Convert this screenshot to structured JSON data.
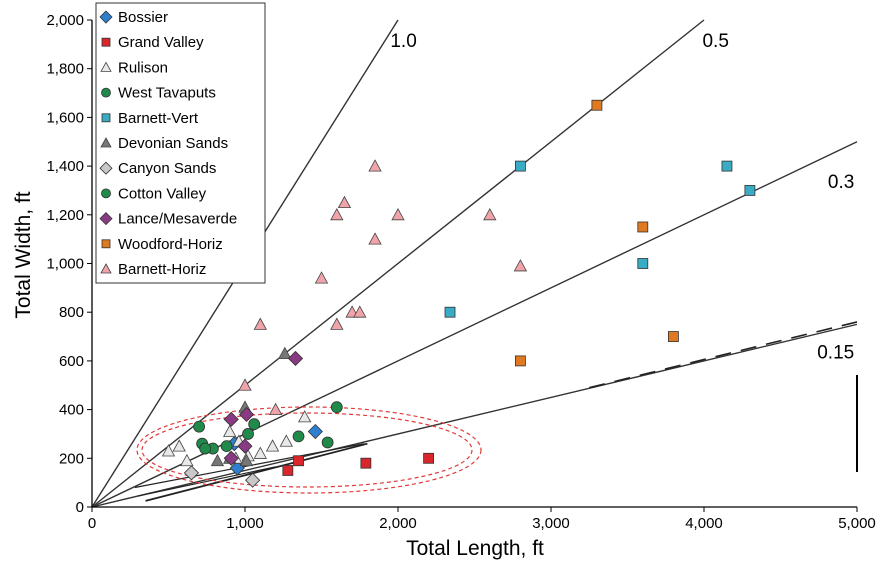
{
  "chart_data": {
    "type": "scatter",
    "xlabel": "Total Length, ft",
    "ylabel": "Total Width, ft",
    "xlim": [
      0,
      5000
    ],
    "ylim": [
      0,
      2000
    ],
    "x_ticks": [
      {
        "value": 0,
        "label": "0"
      },
      {
        "value": 1000,
        "label": "1,000"
      },
      {
        "value": 2000,
        "label": "2,000"
      },
      {
        "value": 3000,
        "label": "3,000"
      },
      {
        "value": 4000,
        "label": "4,000"
      },
      {
        "value": 5000,
        "label": "5,000"
      }
    ],
    "y_ticks": [
      {
        "value": 0,
        "label": "0"
      },
      {
        "value": 200,
        "label": "200"
      },
      {
        "value": 400,
        "label": "400"
      },
      {
        "value": 600,
        "label": "600"
      },
      {
        "value": 800,
        "label": "800"
      },
      {
        "value": 1000,
        "label": "1,000"
      },
      {
        "value": 1200,
        "label": "1,200"
      },
      {
        "value": 1400,
        "label": "1,400"
      },
      {
        "value": 1600,
        "label": "1,600"
      },
      {
        "value": 1800,
        "label": "1,800"
      },
      {
        "value": 2000,
        "label": "2,000"
      }
    ],
    "grid": false,
    "legend_position": "top-left",
    "ratio_lines": [
      {
        "label": "1.0",
        "slope": 1.0,
        "label_at": [
          1950,
          1890
        ]
      },
      {
        "label": "0.5",
        "slope": 0.5,
        "label_at": [
          3990,
          1890
        ]
      },
      {
        "label": "0.3",
        "slope": 0.3,
        "label_at": [
          4810,
          1310
        ]
      },
      {
        "label": "0.15",
        "slope": 0.15,
        "label_at": [
          4740,
          610
        ]
      }
    ],
    "series": [
      {
        "name": "Bossier",
        "marker": "diamond",
        "color": "#2f7fd0",
        "points": [
          [
            950,
            160
          ],
          [
            930,
            260
          ],
          [
            1460,
            310
          ]
        ]
      },
      {
        "name": "Grand Valley",
        "marker": "square",
        "color": "#d8262b",
        "points": [
          [
            1280,
            150
          ],
          [
            1350,
            190
          ],
          [
            1790,
            180
          ],
          [
            2200,
            200
          ]
        ]
      },
      {
        "name": "Rulison",
        "marker": "triangle",
        "color": "#e8e8e8",
        "points": [
          [
            500,
            230
          ],
          [
            570,
            250
          ],
          [
            620,
            190
          ],
          [
            900,
            310
          ],
          [
            960,
            270
          ],
          [
            1020,
            210
          ],
          [
            1100,
            220
          ],
          [
            1180,
            250
          ],
          [
            1270,
            270
          ],
          [
            1390,
            370
          ],
          [
            940,
            200
          ]
        ]
      },
      {
        "name": "West Tavaputs",
        "marker": "circle",
        "color": "#1f8a4a",
        "points": [
          [
            700,
            330
          ],
          [
            720,
            260
          ],
          [
            790,
            240
          ],
          [
            880,
            250
          ],
          [
            1060,
            340
          ],
          [
            1350,
            290
          ],
          [
            1540,
            265
          ],
          [
            1600,
            410
          ]
        ]
      },
      {
        "name": "Barnett-Vert",
        "marker": "square",
        "color": "#3aabc4",
        "points": [
          [
            2340,
            800
          ],
          [
            2800,
            1400
          ],
          [
            3600,
            1000
          ],
          [
            4150,
            1400
          ],
          [
            4300,
            1300
          ]
        ]
      },
      {
        "name": "Devonian Sands",
        "marker": "triangle",
        "color": "#777777",
        "points": [
          [
            820,
            190
          ],
          [
            900,
            200
          ],
          [
            1000,
            410
          ],
          [
            1010,
            190
          ],
          [
            1260,
            630
          ]
        ]
      },
      {
        "name": "Canyon Sands",
        "marker": "diamond",
        "color": "#c8c8c8",
        "points": [
          [
            650,
            140
          ],
          [
            1050,
            110
          ]
        ]
      },
      {
        "name": "Cotton Valley",
        "marker": "circle",
        "color": "#1f8a4a",
        "points": [
          [
            740,
            240
          ],
          [
            1020,
            300
          ]
        ]
      },
      {
        "name": "Lance/Mesaverde",
        "marker": "diamond",
        "color": "#8a3a82",
        "points": [
          [
            910,
            200
          ],
          [
            910,
            360
          ],
          [
            1000,
            250
          ],
          [
            1010,
            380
          ],
          [
            1330,
            610
          ]
        ]
      },
      {
        "name": "Woodford-Horiz",
        "marker": "square",
        "color": "#e07a22",
        "points": [
          [
            2800,
            600
          ],
          [
            3300,
            1650
          ],
          [
            3600,
            1150
          ],
          [
            3800,
            700
          ]
        ]
      },
      {
        "name": "Barnett-Horiz",
        "marker": "triangle",
        "color": "#f0a4aa",
        "points": [
          [
            1000,
            500
          ],
          [
            1100,
            750
          ],
          [
            1200,
            400
          ],
          [
            1500,
            940
          ],
          [
            1600,
            750
          ],
          [
            1600,
            1200
          ],
          [
            1650,
            1250
          ],
          [
            1700,
            800
          ],
          [
            1750,
            800
          ],
          [
            1850,
            1100
          ],
          [
            1850,
            1400
          ],
          [
            2000,
            1200
          ],
          [
            2600,
            1200
          ],
          [
            2800,
            990
          ]
        ]
      }
    ]
  }
}
